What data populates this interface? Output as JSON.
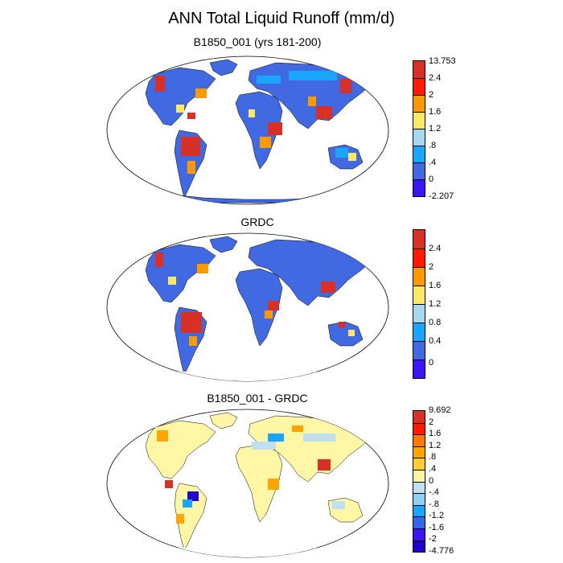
{
  "title": "ANN Total Liquid Runoff (mm/d)",
  "panels": [
    {
      "name": "model",
      "title": "B1850_001 (yrs 181-200)",
      "colorbar": {
        "labels": [
          "13.753",
          "2.4",
          "2",
          "1.6",
          "1.2",
          ".8",
          ".4",
          "0",
          "-2.207"
        ],
        "colors": [
          "#d73027",
          "#ff1a00",
          "#ff9900",
          "#ffe866",
          "#a6d8f0",
          "#1aa6ff",
          "#4169e1",
          "#3a16f0"
        ]
      }
    },
    {
      "name": "obs",
      "title": "GRDC",
      "colorbar": {
        "labels": [
          "2.4",
          "2",
          "1.6",
          "1.2",
          "0.8",
          "0.4",
          "0"
        ],
        "colors": [
          "#d73027",
          "#ff1a00",
          "#ff9900",
          "#ffe866",
          "#a6d8f0",
          "#1aa6ff",
          "#4169e1",
          "#3a16f0"
        ]
      }
    },
    {
      "name": "diff",
      "title": "B1850_001 - GRDC",
      "colorbar": {
        "labels": [
          "9.692",
          "2",
          "1.6",
          "1.2",
          ".8",
          ".4",
          "0",
          "-.4",
          "-.8",
          "-1.2",
          "-1.6",
          "-2",
          "-4.776"
        ],
        "colors": [
          "#d73027",
          "#ff1a00",
          "#ff7a00",
          "#ffa500",
          "#ffcc33",
          "#fff7a6",
          "#bfe0f2",
          "#8fd0f5",
          "#1aa6ff",
          "#3366ee",
          "#3a16f0",
          "#2200cc"
        ]
      }
    }
  ]
}
